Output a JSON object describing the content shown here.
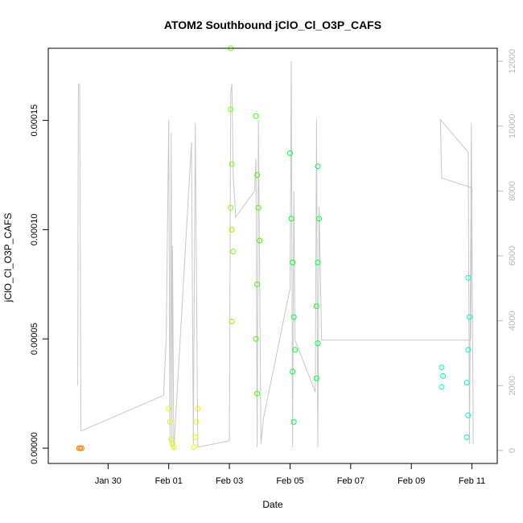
{
  "chart_data": {
    "type": "scatter",
    "title": "ATOM2 Southbound jClO_Cl_O3P_CAFS",
    "xlabel": "Date",
    "ylabel": "jClO_Cl_O3P_CAFS",
    "x_type": "date",
    "xlim": [
      "2017-01-28T00:40",
      "2017-02-11T20:00"
    ],
    "x_ticks": [
      {
        "value": "2017-01-30",
        "label": "Jan 30"
      },
      {
        "value": "2017-02-01",
        "label": "Feb 01"
      },
      {
        "value": "2017-02-03",
        "label": "Feb 03"
      },
      {
        "value": "2017-02-05",
        "label": "Feb 05"
      },
      {
        "value": "2017-02-07",
        "label": "Feb 07"
      },
      {
        "value": "2017-02-09",
        "label": "Feb 09"
      },
      {
        "value": "2017-02-11",
        "label": "Feb 11"
      }
    ],
    "ylim": [
      -7e-06,
      0.000183
    ],
    "y_ticks": [
      {
        "value": 0,
        "label": "0.00000"
      },
      {
        "value": 5e-05,
        "label": "0.00005"
      },
      {
        "value": 0.0001,
        "label": "0.00010"
      },
      {
        "value": 0.00015,
        "label": "0.00015"
      }
    ],
    "y2lim": [
      -400,
      12400
    ],
    "y2_ticks": [
      {
        "value": 0,
        "label": "0"
      },
      {
        "value": 2000,
        "label": "2000"
      },
      {
        "value": 4000,
        "label": "4000"
      },
      {
        "value": 6000,
        "label": "6000"
      },
      {
        "value": 8000,
        "label": "8000"
      },
      {
        "value": 10000,
        "label": "10000"
      },
      {
        "value": 12000,
        "label": "12000"
      }
    ],
    "grid": false,
    "legend": "none",
    "altitude_color": "#c8c8c8",
    "series": [
      {
        "color": "#ff8000",
        "points": [
          [
            "2017-01-29T01:00",
            0.0
          ],
          [
            "2017-01-29T02:00",
            0.0
          ],
          [
            "2017-01-29T03:00",
            0.0
          ]
        ]
      },
      {
        "color": "#ddff00",
        "points": [
          [
            "2017-02-01T00:00",
            1.8e-05
          ],
          [
            "2017-02-01T01:00",
            1.2e-05
          ],
          [
            "2017-02-01T02:00",
            4e-06
          ],
          [
            "2017-02-01T03:00",
            2e-06
          ],
          [
            "2017-02-01T04:00",
            5e-07
          ]
        ]
      },
      {
        "color": "#ddff00",
        "points": [
          [
            "2017-02-01T20:00",
            5e-07
          ],
          [
            "2017-02-01T21:00",
            5e-06
          ],
          [
            "2017-02-01T22:00",
            1.2e-05
          ],
          [
            "2017-02-01T23:00",
            1.8e-05
          ]
        ]
      },
      {
        "color": "#80ff00",
        "points": [
          [
            "2017-02-03T01:00",
            0.000183
          ],
          [
            "2017-02-03T01:00",
            0.000155
          ],
          [
            "2017-02-03T02:00",
            0.00013
          ],
          [
            "2017-02-03T01:00",
            0.00011
          ],
          [
            "2017-02-03T02:00",
            0.0001
          ],
          [
            "2017-02-03T03:00",
            9e-05
          ],
          [
            "2017-02-03T02:00",
            5.8e-05
          ]
        ]
      },
      {
        "color": "#40ff00",
        "points": [
          [
            "2017-02-03T21:00",
            0.000152
          ],
          [
            "2017-02-03T22:00",
            0.000125
          ],
          [
            "2017-02-03T23:00",
            0.00011
          ],
          [
            "2017-02-04T00:00",
            9.5e-05
          ],
          [
            "2017-02-03T22:00",
            7.5e-05
          ],
          [
            "2017-02-03T21:00",
            5e-05
          ],
          [
            "2017-02-03T22:00",
            2.5e-05
          ]
        ]
      },
      {
        "color": "#00ff40",
        "points": [
          [
            "2017-02-05T00:00",
            0.000135
          ],
          [
            "2017-02-05T01:00",
            0.000105
          ],
          [
            "2017-02-05T02:00",
            8.5e-05
          ],
          [
            "2017-02-05T03:00",
            6e-05
          ],
          [
            "2017-02-05T04:00",
            4.5e-05
          ],
          [
            "2017-02-05T02:00",
            3.5e-05
          ],
          [
            "2017-02-05T03:00",
            1.2e-05
          ]
        ]
      },
      {
        "color": "#00ff40",
        "points": [
          [
            "2017-02-05T22:00",
            0.000129
          ],
          [
            "2017-02-05T23:00",
            0.000105
          ],
          [
            "2017-02-05T22:00",
            8.5e-05
          ],
          [
            "2017-02-05T21:00",
            6.5e-05
          ],
          [
            "2017-02-05T22:00",
            4.8e-05
          ],
          [
            "2017-02-05T21:00",
            3.2e-05
          ]
        ]
      },
      {
        "color": "#00ffc0",
        "points": [
          [
            "2017-02-10T00:00",
            3.7e-05
          ],
          [
            "2017-02-10T01:00",
            3.3e-05
          ],
          [
            "2017-02-10T00:00",
            2.8e-05
          ]
        ]
      },
      {
        "color": "#00ffc0",
        "points": [
          [
            "2017-02-10T21:00",
            7.8e-05
          ],
          [
            "2017-02-10T22:00",
            6e-05
          ],
          [
            "2017-02-10T21:00",
            4.5e-05
          ],
          [
            "2017-02-10T20:00",
            3e-05
          ],
          [
            "2017-02-10T21:00",
            1.5e-05
          ],
          [
            "2017-02-10T20:00",
            5e-06
          ]
        ]
      }
    ]
  }
}
